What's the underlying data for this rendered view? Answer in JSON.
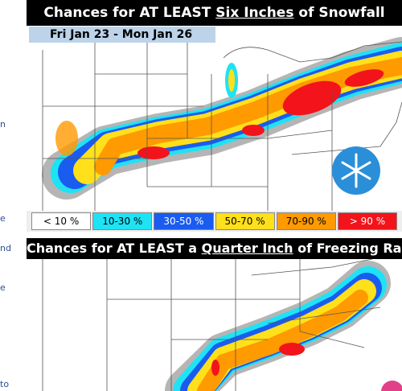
{
  "sidebar_fragments": [
    "n",
    "e",
    "nd",
    "e",
    "to"
  ],
  "snow_map": {
    "title": {
      "before": "Chances for AT LEAST ",
      "underlined": "Six Inches",
      "after": " of Snowfall"
    },
    "dates": "Fri Jan 23 - Mon Jan 26",
    "legend": [
      {
        "label": "< 10 %",
        "color": "#ffffff",
        "text_color": "#000000"
      },
      {
        "label": "10-30 %",
        "color": "#1ee3f5",
        "text_color": "#000000"
      },
      {
        "label": "30-50 %",
        "color": "#1a5cf0",
        "text_color": "#ffffff"
      },
      {
        "label": "50-70 %",
        "color": "#ffe01a",
        "text_color": "#000000"
      },
      {
        "label": "70-90 %",
        "color": "#ff9a00",
        "text_color": "#000000"
      },
      {
        "label": "> 90 %",
        "color": "#f2141a",
        "text_color": "#ffffff"
      }
    ]
  },
  "ice_map": {
    "title": {
      "before": "Chances for AT LEAST a ",
      "underlined": "Quarter Inch",
      "after": " of Freezing Rain"
    }
  }
}
